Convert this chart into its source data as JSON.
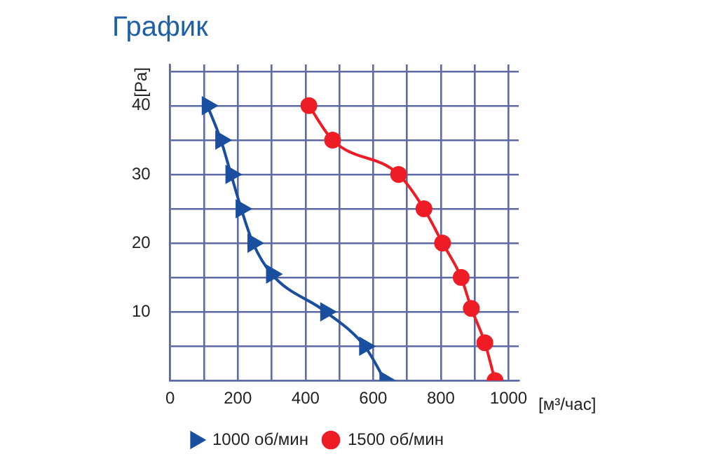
{
  "chart_data": {
    "type": "line",
    "title": "График",
    "xlabel": "[м³/час]",
    "ylabel": "[Pa]",
    "xlim": [
      0,
      1030
    ],
    "xticks": [
      0,
      {
        "value": 100,
        "label": null
      },
      200,
      {
        "value": 300,
        "label": null
      },
      400,
      {
        "value": 500,
        "label": null
      },
      600,
      {
        "value": 700,
        "label": null
      },
      800,
      {
        "value": 900,
        "label": null
      },
      1000
    ],
    "ylim": [
      0,
      46
    ],
    "yticks": [
      {
        "value": 0,
        "label": null
      },
      {
        "value": 5,
        "label": null
      },
      10,
      {
        "value": 15,
        "label": null
      },
      20,
      {
        "value": 25,
        "label": null
      },
      30,
      {
        "value": 35,
        "label": null
      },
      40,
      {
        "value": 45,
        "label": null
      }
    ],
    "grid": true,
    "legend": "bottom",
    "series": [
      {
        "name": "1000 об/мин",
        "color": "#1a4fa0",
        "marker": "triangle",
        "x": [
          110,
          150,
          180,
          210,
          245,
          300,
          460,
          575,
          635
        ],
        "values": [
          40,
          35,
          30,
          25,
          20,
          15.5,
          10,
          5,
          0
        ]
      },
      {
        "name": "1500 об/мин",
        "color": "#ee1c24",
        "marker": "circle",
        "x": [
          410,
          480,
          675,
          750,
          805,
          860,
          890,
          930,
          960
        ],
        "values": [
          40,
          35,
          30,
          25,
          20,
          15,
          10.5,
          5.5,
          0
        ]
      }
    ]
  }
}
